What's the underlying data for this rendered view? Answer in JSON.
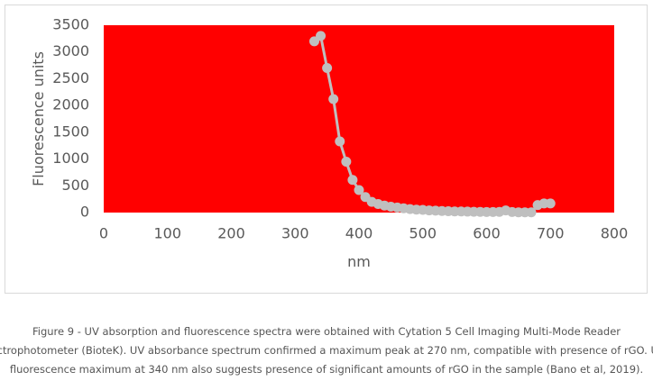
{
  "chart_data": {
    "type": "line",
    "x_label": "nm",
    "y_label": "Fluorescence units",
    "x": [
      330,
      340,
      350,
      360,
      370,
      380,
      390,
      400,
      410,
      420,
      430,
      440,
      450,
      460,
      470,
      480,
      490,
      500,
      510,
      520,
      530,
      540,
      550,
      560,
      570,
      580,
      590,
      600,
      610,
      620,
      630,
      640,
      650,
      660,
      670,
      680,
      690,
      700
    ],
    "series": [
      {
        "color": "#bfbfbf",
        "values": [
          3200,
          3300,
          2700,
          2120,
          1330,
          950,
          610,
          420,
          290,
          200,
          160,
          130,
          110,
          95,
          80,
          65,
          55,
          50,
          40,
          35,
          30,
          25,
          22,
          20,
          18,
          15,
          12,
          10,
          10,
          12,
          40,
          10,
          5,
          5,
          5,
          140,
          170,
          170
        ]
      }
    ],
    "plot_background": "#ff0000",
    "xlim": [
      0,
      800
    ],
    "xticks": [
      0,
      100,
      200,
      300,
      400,
      500,
      600,
      700,
      800
    ],
    "ylim": [
      0,
      3500
    ],
    "yticks": [
      0,
      500,
      1000,
      1500,
      2000,
      2500,
      3000,
      3500
    ]
  },
  "caption": {
    "lines": [
      "Figure 9 - UV absorption and fluorescence spectra were obtained with Cytation 5 Cell Imaging Multi-Mode Reader",
      "pectrophotometer (BioteK). UV absorbance spectrum confirmed a maximum peak at 270 nm, compatible with presence of rGO. UV",
      "fluorescence maximum at 340 nm also suggests presence of significant amounts of rGO in the sample (Bano et al, 2019)."
    ]
  }
}
